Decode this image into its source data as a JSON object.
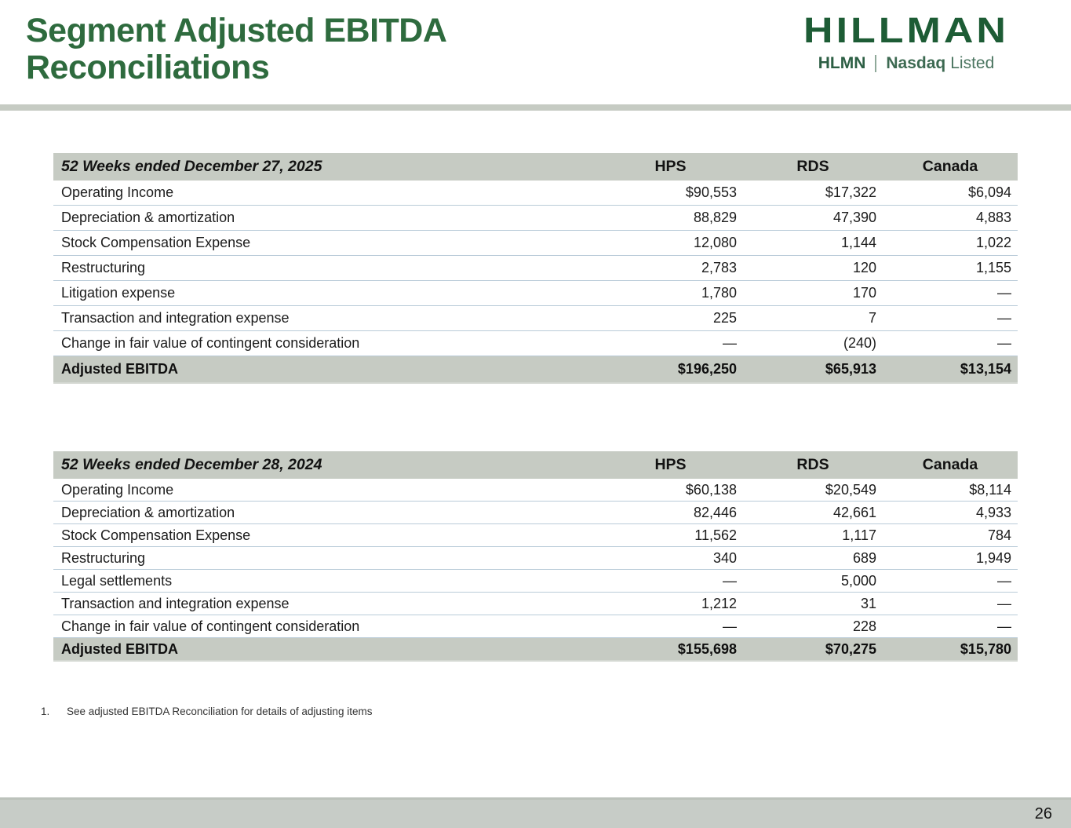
{
  "header": {
    "title_line1": "Segment Adjusted EBITDA",
    "title_line2": "Reconciliations",
    "logo": {
      "brand": "HILLMAN",
      "ticker": "HLMN",
      "listing_bold": "Nasdaq",
      "listing_regular": "Listed"
    }
  },
  "tables": [
    {
      "period": "52 Weeks ended December 27, 2025",
      "columns": [
        "HPS",
        "RDS",
        "Canada"
      ],
      "rows": [
        {
          "label": "Operating Income",
          "values": [
            "$90,553",
            "$17,322",
            "$6,094"
          ]
        },
        {
          "label": "Depreciation & amortization",
          "values": [
            "88,829",
            "47,390",
            "4,883"
          ]
        },
        {
          "label": "Stock Compensation Expense",
          "values": [
            "12,080",
            "1,144",
            "1,022"
          ]
        },
        {
          "label": "Restructuring",
          "values": [
            "2,783",
            "120",
            "1,155"
          ]
        },
        {
          "label": "Litigation expense",
          "values": [
            "1,780",
            "170",
            "—"
          ]
        },
        {
          "label": "Transaction and integration expense",
          "values": [
            "225",
            "7",
            "—"
          ]
        },
        {
          "label": "Change in fair value of contingent consideration",
          "values": [
            "—",
            "(240)",
            "—"
          ]
        }
      ],
      "total": {
        "label": "Adjusted EBITDA",
        "values": [
          "$196,250",
          "$65,913",
          "$13,154"
        ]
      }
    },
    {
      "period": "52 Weeks ended December 28, 2024",
      "columns": [
        "HPS",
        "RDS",
        "Canada"
      ],
      "rows": [
        {
          "label": "Operating Income",
          "values": [
            "$60,138",
            "$20,549",
            "$8,114"
          ]
        },
        {
          "label": "Depreciation & amortization",
          "values": [
            "82,446",
            "42,661",
            "4,933"
          ]
        },
        {
          "label": "Stock Compensation Expense",
          "values": [
            "11,562",
            "1,117",
            "784"
          ]
        },
        {
          "label": "Restructuring",
          "values": [
            "340",
            "689",
            "1,949"
          ]
        },
        {
          "label": "Legal settlements",
          "values": [
            "—",
            "5,000",
            "—"
          ]
        },
        {
          "label": "Transaction and integration expense",
          "values": [
            "1,212",
            "31",
            "—"
          ]
        },
        {
          "label": "Change in fair value of contingent consideration",
          "values": [
            "—",
            "228",
            "—"
          ]
        }
      ],
      "total": {
        "label": "Adjusted EBITDA",
        "values": [
          "$155,698",
          "$70,275",
          "$15,780"
        ]
      }
    }
  ],
  "footnote": {
    "number": "1.",
    "text": "See adjusted EBITDA Reconciliation for details of adjusting items"
  },
  "footer": {
    "page_number": "26"
  },
  "colors": {
    "title_green": "#2e6b3e",
    "logo_green": "#1d5c35",
    "bar_gray_green": "#c6cbc3",
    "row_separator_blue": "#b9cbd8",
    "footer_bar": "#c7ccc7"
  }
}
